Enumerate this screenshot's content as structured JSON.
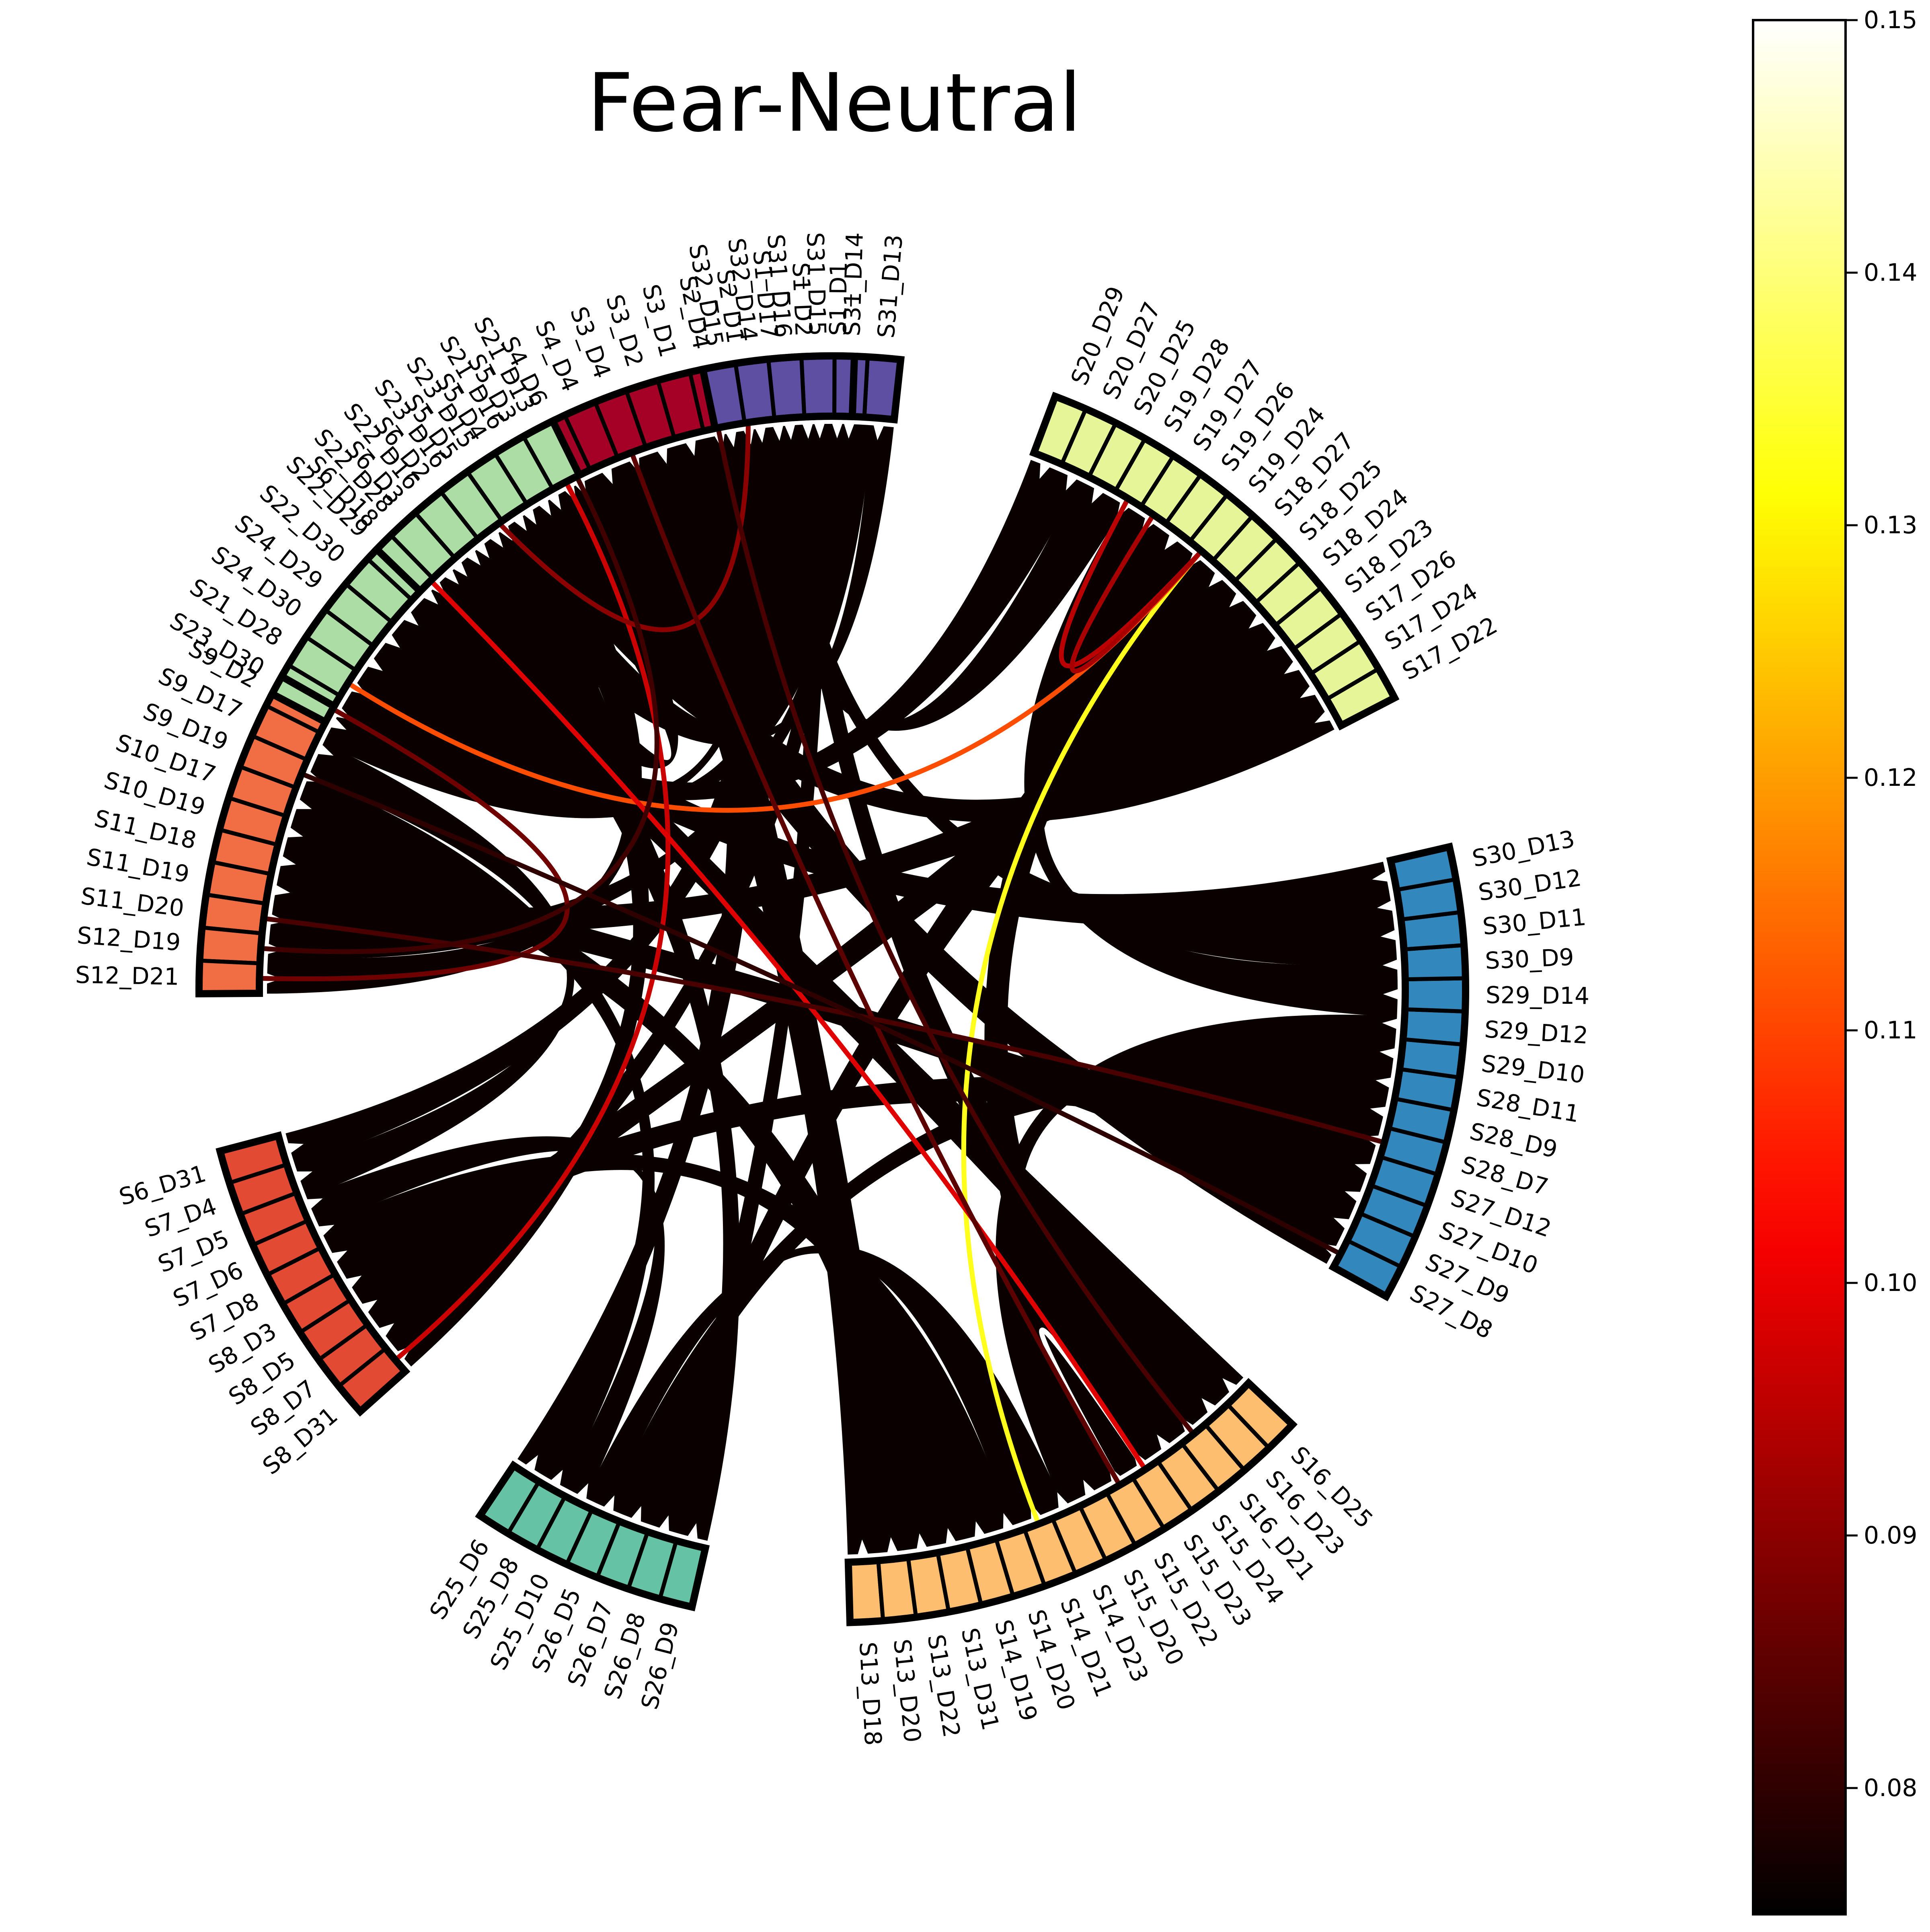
{
  "title": "Fear-Neutral",
  "chart_data": {
    "type": "chord",
    "title": "Fear-Neutral",
    "colorbar": {
      "colormap": "hot",
      "min": 0.075,
      "max": 0.15,
      "ticks": [
        0.08,
        0.09,
        0.1,
        0.11,
        0.12,
        0.13,
        0.14,
        0.15
      ],
      "tick_labels": [
        "0.08",
        "0.09",
        "0.10",
        "0.11",
        "0.12",
        "0.13",
        "0.14",
        "0.15"
      ]
    },
    "groups": [
      {
        "color": "#a50026",
        "channels": [
          "S1_D1",
          "S1_D2",
          "S1_D17",
          "S2_D1",
          "S2_D4",
          "S3_D1",
          "S3_D2",
          "S3_D4",
          "S4_D4",
          "S4_D6",
          "S5_D3",
          "S5_D4",
          "S5_D5",
          "S6_D2",
          "S6_D3",
          "S6_D18"
        ]
      },
      {
        "color": "#f16d43",
        "channels": [
          "S9_D2",
          "S9_D17",
          "S9_D19",
          "S10_D17",
          "S10_D19",
          "S11_D18",
          "S11_D19",
          "S11_D20",
          "S12_D19",
          "S12_D21"
        ]
      },
      {
        "color": "#e34a33",
        "channels": [
          "S6_D31",
          "S7_D4",
          "S7_D5",
          "S7_D6",
          "S7_D8",
          "S8_D3",
          "S8_D5",
          "S8_D7",
          "S8_D31"
        ]
      },
      {
        "color": "#66c2a5",
        "channels": [
          "S25_D6",
          "S25_D8",
          "S25_D10",
          "S26_D5",
          "S26_D7",
          "S26_D8",
          "S26_D9"
        ]
      },
      {
        "color": "#fdbf6f",
        "channels": [
          "S13_D18",
          "S13_D20",
          "S13_D22",
          "S13_D31",
          "S14_D19",
          "S14_D20",
          "S14_D21",
          "S14_D23",
          "S15_D20",
          "S15_D22",
          "S15_D23",
          "S15_D24",
          "S16_D21",
          "S16_D23",
          "S16_D25"
        ]
      },
      {
        "color": "#3288bd",
        "channels": [
          "S27_D8",
          "S27_D9",
          "S27_D10",
          "S27_D12",
          "S28_D7",
          "S28_D9",
          "S28_D11",
          "S29_D10",
          "S29_D12",
          "S29_D14",
          "S30_D9",
          "S30_D11",
          "S30_D12",
          "S30_D13"
        ]
      },
      {
        "color": "#e6f598",
        "channels": [
          "S17_D22",
          "S17_D24",
          "S17_D26",
          "S18_D23",
          "S18_D24",
          "S18_D25",
          "S18_D27",
          "S19_D24",
          "S19_D26",
          "S19_D27",
          "S19_D28",
          "S20_D25",
          "S20_D27",
          "S20_D29"
        ]
      },
      {
        "color": "#5e4fa2",
        "channels": [
          "S31_D13",
          "S31_D14",
          "S31_D15",
          "S31_D16",
          "S32_D14",
          "S32_D15"
        ]
      },
      {
        "color": "#abdda4",
        "channels": [
          "S21_D13",
          "S21_D16",
          "S23_D15",
          "S23_D16",
          "S22_D16",
          "S22_D28",
          "S22_D29",
          "S22_D30",
          "S24_D29",
          "S24_D30",
          "S21_D28",
          "S23_D30"
        ]
      }
    ],
    "links": [
      {
        "source": "S15_D23",
        "target": "S15_D22",
        "value": 0.15
      },
      {
        "source": "S19_D24",
        "target": "S14_D21",
        "value": 0.133
      },
      {
        "source": "S19_D24",
        "target": "S21_D28",
        "value": 0.111
      },
      {
        "source": "S21_D13",
        "target": "S8_D31",
        "value": 0.097
      },
      {
        "source": "S6_D18",
        "target": "S15_D23",
        "value": 0.099
      },
      {
        "source": "S19_D24",
        "target": "S19_D28",
        "value": 0.095
      },
      {
        "source": "S19_D24",
        "target": "S19_D27",
        "value": 0.093
      },
      {
        "source": "S5_D5",
        "target": "S2_D1",
        "value": 0.09
      },
      {
        "source": "S12_D21",
        "target": "S23_D30",
        "value": 0.087
      },
      {
        "source": "S3_D4",
        "target": "S15_D22",
        "value": 0.085
      },
      {
        "source": "S2_D4",
        "target": "S16_D21",
        "value": 0.083
      },
      {
        "source": "S11_D20",
        "target": "S28_D7",
        "value": 0.083
      },
      {
        "source": "S12_D19",
        "target": "S4_D6",
        "value": 0.082
      },
      {
        "source": "S9_D19",
        "target": "S27_D8",
        "value": 0.08
      }
    ]
  }
}
